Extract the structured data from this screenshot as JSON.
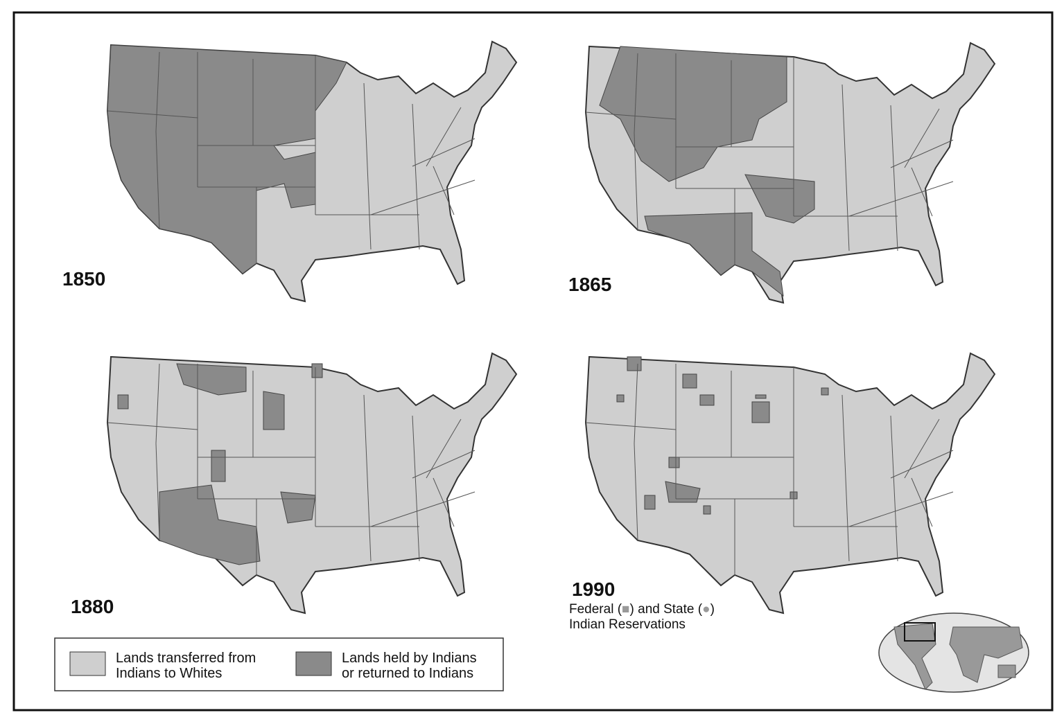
{
  "maps": [
    {
      "year": "1850"
    },
    {
      "year": "1865"
    },
    {
      "year": "1880"
    },
    {
      "year": "1990",
      "caption": {
        "line1": [
          "Federal (",
          ") and State (",
          ")"
        ],
        "line2": "Indian Reservations"
      }
    }
  ],
  "legend": {
    "items": [
      {
        "lines": [
          "Lands transferred from",
          "Indians to Whites"
        ]
      },
      {
        "lines": [
          "Lands held by Indians",
          "or returned to Indians"
        ]
      }
    ]
  }
}
